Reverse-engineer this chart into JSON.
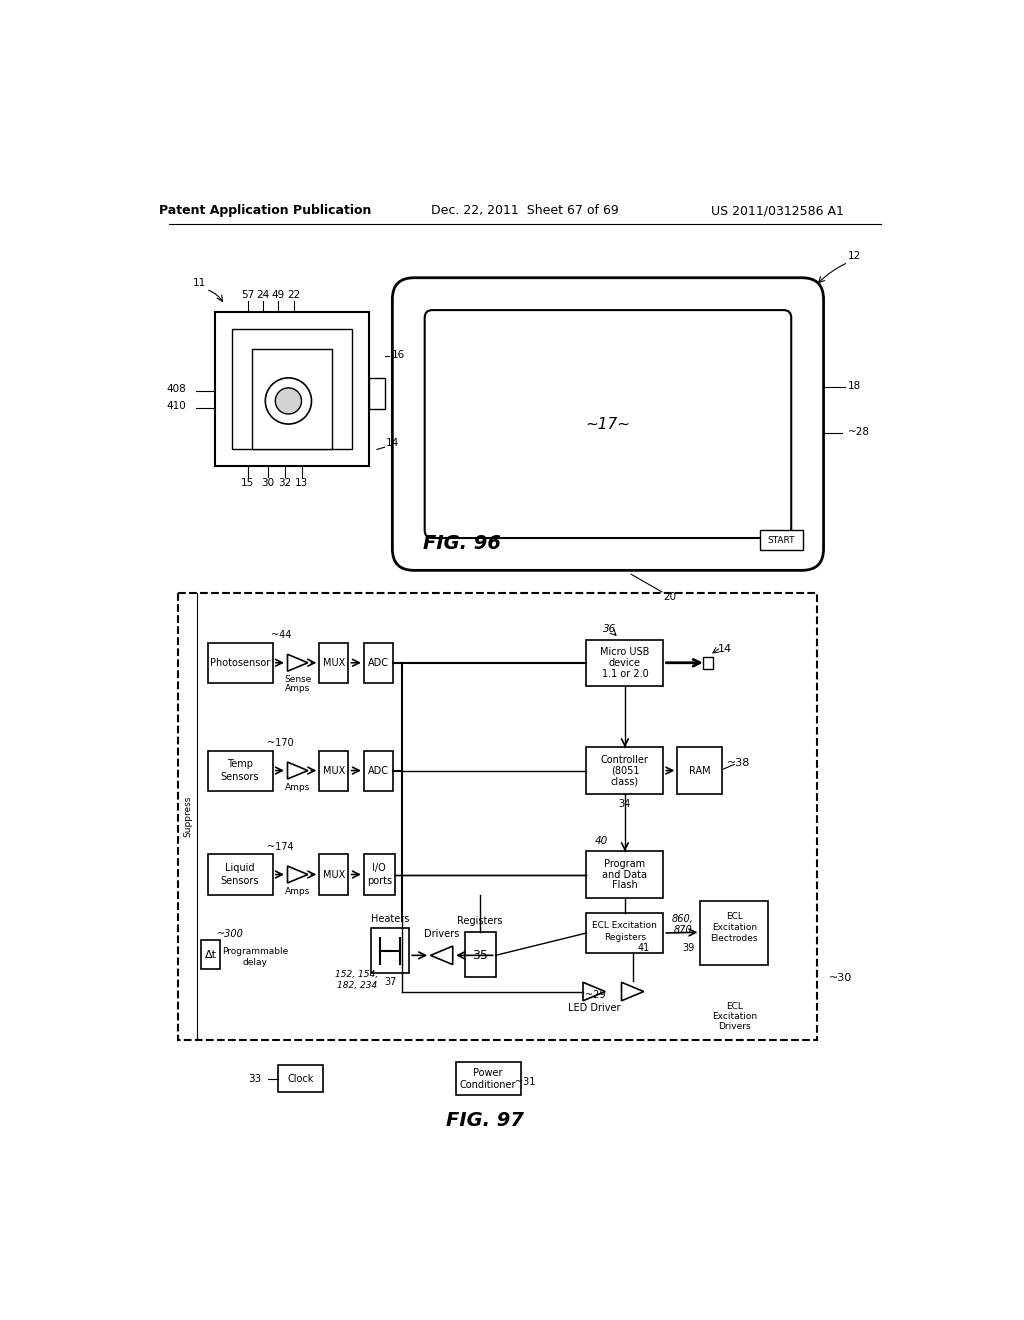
{
  "bg_color": "#ffffff",
  "header_left": "Patent Application Publication",
  "header_mid": "Dec. 22, 2011  Sheet 67 of 69",
  "header_right": "US 2011/0312586 A1",
  "fig96_label": "FIG. 96",
  "fig97_label": "FIG. 97"
}
